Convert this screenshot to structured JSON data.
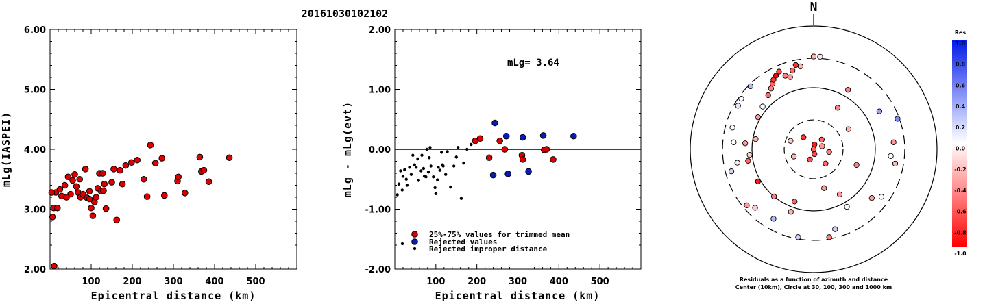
{
  "figure_title": "20161030102102",
  "chart_data": [
    {
      "type": "scatter",
      "xlabel": "Epicentral distance (km)",
      "ylabel": "mLg(IASPEI)",
      "xlim": [
        0,
        600
      ],
      "ylim": [
        2.0,
        6.0
      ],
      "xticks": [
        "100",
        "200",
        "300",
        "400",
        "500"
      ],
      "yticks": [
        "2.00",
        "3.00",
        "4.00",
        "5.00",
        "6.00"
      ],
      "point_color": "#dd0000",
      "points": [
        [
          10,
          2.05
        ],
        [
          6,
          2.87
        ],
        [
          9,
          3.02
        ],
        [
          14,
          3.28
        ],
        [
          18,
          3.02
        ],
        [
          24,
          3.33
        ],
        [
          28,
          3.22
        ],
        [
          36,
          3.4
        ],
        [
          44,
          3.54
        ],
        [
          50,
          3.25
        ],
        [
          55,
          3.48
        ],
        [
          60,
          3.58
        ],
        [
          64,
          3.38
        ],
        [
          68,
          3.28
        ],
        [
          74,
          3.2
        ],
        [
          80,
          3.25
        ],
        [
          86,
          3.67
        ],
        [
          90,
          3.19
        ],
        [
          96,
          3.3
        ],
        [
          100,
          3.02
        ],
        [
          104,
          2.89
        ],
        [
          108,
          3.12
        ],
        [
          112,
          3.2
        ],
        [
          116,
          3.35
        ],
        [
          120,
          3.6
        ],
        [
          124,
          3.3
        ],
        [
          128,
          3.6
        ],
        [
          132,
          3.42
        ],
        [
          136,
          3.01
        ],
        [
          150,
          3.45
        ],
        [
          155,
          3.67
        ],
        [
          162,
          2.82
        ],
        [
          170,
          3.65
        ],
        [
          176,
          3.42
        ],
        [
          184,
          3.73
        ],
        [
          198,
          3.78
        ],
        [
          212,
          3.82
        ],
        [
          228,
          3.5
        ],
        [
          236,
          3.21
        ],
        [
          244,
          4.07
        ],
        [
          256,
          3.77
        ],
        [
          272,
          3.85
        ],
        [
          278,
          3.23
        ],
        [
          310,
          3.47
        ],
        [
          312,
          3.54
        ],
        [
          328,
          3.27
        ],
        [
          364,
          3.87
        ],
        [
          368,
          3.63
        ],
        [
          374,
          3.65
        ],
        [
          386,
          3.46
        ],
        [
          436,
          3.86
        ],
        [
          4,
          3.28
        ],
        [
          40,
          3.2
        ],
        [
          96,
          3.17
        ],
        [
          72,
          3.5
        ],
        [
          130,
          3.31
        ]
      ]
    },
    {
      "type": "scatter",
      "xlabel": "Epicentral distance (km)",
      "ylabel": "mLg - mLg(evt)",
      "xlim": [
        0,
        600
      ],
      "ylim": [
        -2.0,
        2.0
      ],
      "xticks": [
        "100",
        "200",
        "300",
        "400",
        "500"
      ],
      "yticks": [
        "-2.00",
        "-1.00",
        "0.00",
        "1.00",
        "2.00"
      ],
      "annotation": "mLg= 3.64",
      "reference_line": 0.0,
      "series": [
        {
          "name": "25%-75% values for trimmed mean",
          "color": "#dd0000",
          "points": [
            [
              196,
              0.14
            ],
            [
              208,
              0.18
            ],
            [
              230,
              -0.14
            ],
            [
              256,
              0.14
            ],
            [
              268,
              0.0
            ],
            [
              310,
              -0.1
            ],
            [
              312,
              -0.17
            ],
            [
              364,
              -0.01
            ],
            [
              370,
              0.0
            ],
            [
              386,
              -0.17
            ]
          ]
        },
        {
          "name": "Rejected values",
          "color": "#0a1ab8",
          "points": [
            [
              244,
              0.44
            ],
            [
              272,
              0.22
            ],
            [
              312,
              0.2
            ],
            [
              362,
              0.23
            ],
            [
              436,
              0.22
            ],
            [
              240,
              -0.43
            ],
            [
              276,
              -0.41
            ],
            [
              326,
              -0.37
            ]
          ]
        },
        {
          "name": "Rejected improper distance",
          "color": "#000000",
          "points": [
            [
              6,
              -0.76
            ],
            [
              10,
              -0.58
            ],
            [
              14,
              -0.36
            ],
            [
              18,
              -0.68
            ],
            [
              20,
              -0.45
            ],
            [
              24,
              -0.34
            ],
            [
              28,
              -0.5
            ],
            [
              30,
              -0.6
            ],
            [
              36,
              -0.3
            ],
            [
              40,
              -0.42
            ],
            [
              44,
              -0.1
            ],
            [
              48,
              -0.26
            ],
            [
              52,
              -0.3
            ],
            [
              56,
              -0.16
            ],
            [
              58,
              -0.52
            ],
            [
              64,
              -0.36
            ],
            [
              66,
              -0.1
            ],
            [
              70,
              -0.32
            ],
            [
              72,
              -0.45
            ],
            [
              76,
              -0.46
            ],
            [
              78,
              0.0
            ],
            [
              82,
              -0.38
            ],
            [
              84,
              -0.14
            ],
            [
              86,
              0.03
            ],
            [
              88,
              -0.28
            ],
            [
              94,
              -0.46
            ],
            [
              98,
              -0.64
            ],
            [
              100,
              -0.74
            ],
            [
              104,
              -0.51
            ],
            [
              106,
              -0.3
            ],
            [
              110,
              -0.35
            ],
            [
              114,
              -0.05
            ],
            [
              116,
              -0.26
            ],
            [
              118,
              -0.28
            ],
            [
              124,
              -0.42
            ],
            [
              128,
              -0.04
            ],
            [
              136,
              -0.63
            ],
            [
              144,
              -0.28
            ],
            [
              150,
              -0.13
            ],
            [
              154,
              0.03
            ],
            [
              162,
              -0.82
            ],
            [
              168,
              -0.23
            ],
            [
              176,
              0.0
            ],
            [
              186,
              0.08
            ]
          ]
        }
      ]
    },
    {
      "type": "polar-scatter",
      "north_label": "N",
      "caption_line1": "Residuals as a function of azimuth and distance",
      "caption_line2": "Center (10km), Circle at 30, 100, 300 and 1000 km",
      "rings_km": [
        30,
        100,
        300,
        1000
      ],
      "points": [
        {
          "az": 10,
          "dist": 12,
          "res": -0.9
        },
        {
          "az": 40,
          "dist": 16,
          "res": -0.6
        },
        {
          "az": 70,
          "dist": 14,
          "res": -0.4
        },
        {
          "az": 100,
          "dist": 18,
          "res": -0.5
        },
        {
          "az": 140,
          "dist": 20,
          "res": -0.6
        },
        {
          "az": 170,
          "dist": 12,
          "res": -0.7
        },
        {
          "az": 200,
          "dist": 15,
          "res": -0.7
        },
        {
          "az": 250,
          "dist": 22,
          "res": -0.3
        },
        {
          "az": 290,
          "dist": 25,
          "res": -0.2
        },
        {
          "az": 320,
          "dist": 18,
          "res": -0.8
        },
        {
          "az": 355,
          "dist": 8,
          "res": -0.6
        },
        {
          "az": 30,
          "dist": 60,
          "res": -0.5
        },
        {
          "az": 60,
          "dist": 45,
          "res": -0.3
        },
        {
          "az": 110,
          "dist": 55,
          "res": -0.5
        },
        {
          "az": 150,
          "dist": 70,
          "res": -0.4
        },
        {
          "az": 165,
          "dist": 45,
          "res": -0.4
        },
        {
          "az": 200,
          "dist": 80,
          "res": -0.6
        },
        {
          "az": 220,
          "dist": 100,
          "res": -0.5
        },
        {
          "az": 240,
          "dist": 110,
          "res": -0.9
        },
        {
          "az": 260,
          "dist": 120,
          "res": -0.6
        },
        {
          "az": 280,
          "dist": 90,
          "res": -0.3
        },
        {
          "az": 300,
          "dist": 110,
          "res": -0.4
        },
        {
          "az": 310,
          "dist": 120,
          "res": 0.0
        },
        {
          "az": 320,
          "dist": 140,
          "res": -0.6
        },
        {
          "az": 325,
          "dist": 160,
          "res": -0.5
        },
        {
          "az": 328,
          "dist": 180,
          "res": -0.6
        },
        {
          "az": 330,
          "dist": 200,
          "res": -0.8
        },
        {
          "az": 333,
          "dist": 220,
          "res": -1.0
        },
        {
          "az": 336,
          "dist": 240,
          "res": -0.7
        },
        {
          "az": 339,
          "dist": 190,
          "res": -0.5
        },
        {
          "az": 342,
          "dist": 170,
          "res": -0.4
        },
        {
          "az": 345,
          "dist": 210,
          "res": -0.6
        },
        {
          "az": 348,
          "dist": 250,
          "res": -0.8
        },
        {
          "az": 351,
          "dist": 230,
          "res": -0.3
        },
        {
          "az": 0,
          "dist": 320,
          "res": -0.3
        },
        {
          "az": 4,
          "dist": 320,
          "res": -0.1
        },
        {
          "az": 30,
          "dist": 130,
          "res": -0.5
        },
        {
          "az": 60,
          "dist": 170,
          "res": 0.4
        },
        {
          "az": 70,
          "dist": 280,
          "res": 0.5
        },
        {
          "az": 85,
          "dist": 200,
          "res": -0.4
        },
        {
          "az": 95,
          "dist": 180,
          "res": 0.0
        },
        {
          "az": 100,
          "dist": 220,
          "res": -0.3
        },
        {
          "az": 125,
          "dist": 220,
          "res": 0.0
        },
        {
          "az": 130,
          "dist": 170,
          "res": -0.4
        },
        {
          "az": 150,
          "dist": 120,
          "res": 0.0
        },
        {
          "az": 165,
          "dist": 220,
          "res": 0.2
        },
        {
          "az": 170,
          "dist": 280,
          "res": -0.5
        },
        {
          "az": 190,
          "dist": 280,
          "res": 0.2
        },
        {
          "az": 200,
          "dist": 120,
          "res": -0.3
        },
        {
          "az": 210,
          "dist": 200,
          "res": 0.3
        },
        {
          "az": 225,
          "dist": 220,
          "res": -0.2
        },
        {
          "az": 230,
          "dist": 260,
          "res": -0.4
        },
        {
          "az": 255,
          "dist": 240,
          "res": 0.2
        },
        {
          "az": 260,
          "dist": 180,
          "res": -0.1
        },
        {
          "az": 275,
          "dist": 200,
          "res": 0.0
        },
        {
          "az": 285,
          "dist": 230,
          "res": 0.0
        },
        {
          "az": 300,
          "dist": 260,
          "res": 0.1
        },
        {
          "az": 305,
          "dist": 270,
          "res": 0.0
        },
        {
          "az": 315,
          "dist": 280,
          "res": 0.3
        },
        {
          "az": 275,
          "dist": 130,
          "res": -0.4
        },
        {
          "az": 265,
          "dist": 110,
          "res": -0.2
        }
      ],
      "colorbar": {
        "title": "Res",
        "ticks": [
          "1.0",
          "0.8",
          "0.6",
          "0.4",
          "0.2",
          "0.0",
          "-0.2",
          "-0.4",
          "-0.6",
          "-0.8",
          "-1.0"
        ]
      }
    }
  ]
}
